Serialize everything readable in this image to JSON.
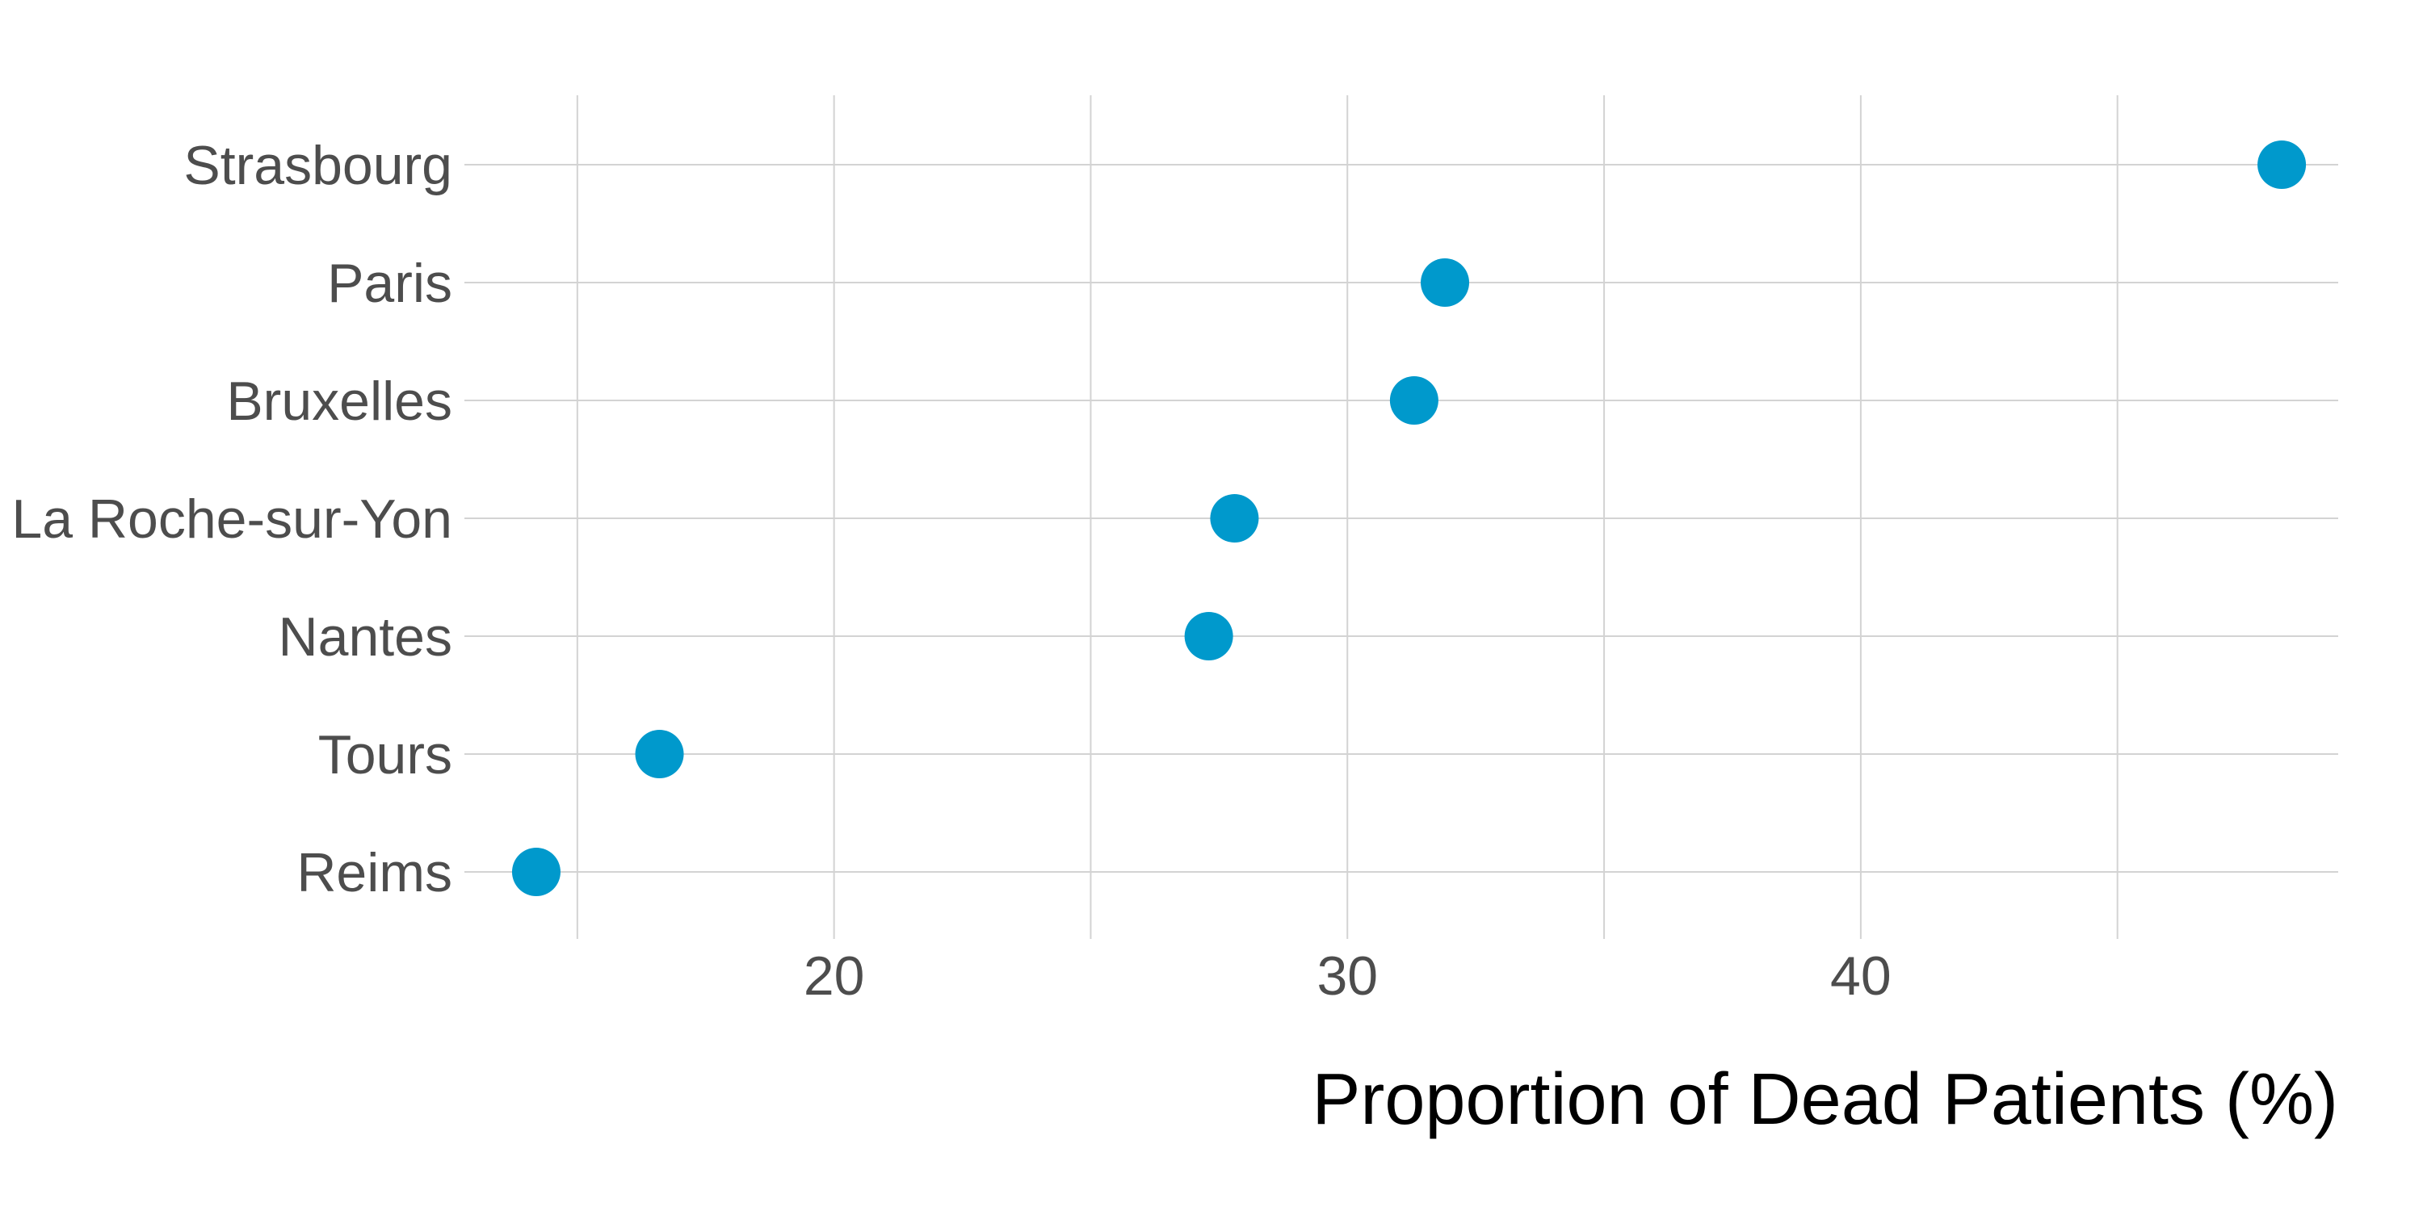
{
  "chart_data": {
    "type": "scatter",
    "title": "",
    "xlabel": "Proportion of Dead Patients (%)",
    "ylabel": "",
    "xlim": [
      12.8,
      49.3
    ],
    "x_ticks": [
      20,
      30,
      40
    ],
    "x_tick_labels": [
      "20",
      "30",
      "40"
    ],
    "grid": true,
    "legend": "none",
    "point_color": "#0099cc",
    "categories": [
      "Strasbourg",
      "Paris",
      "Bruxelles",
      "La Roche-sur-Yon",
      "Nantes",
      "Tours",
      "Reims"
    ],
    "values": [
      48.2,
      31.9,
      31.3,
      27.8,
      27.3,
      16.6,
      14.2
    ]
  }
}
